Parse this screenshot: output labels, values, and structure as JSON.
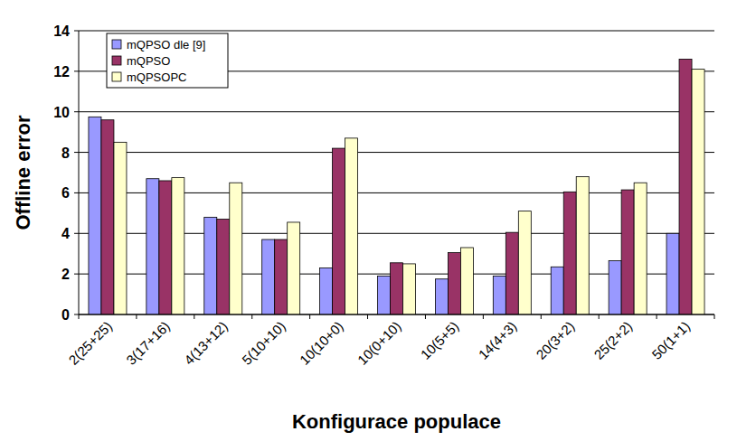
{
  "chart_data": {
    "type": "bar",
    "x_label": "Konfigurace populace",
    "y_label": "Offline error",
    "categories": [
      "2(25+25)",
      "3(17+16)",
      "4(13+12)",
      "5(10+10)",
      "10(10+0)",
      "10(0+10)",
      "10(5+5)",
      "14(4+3)",
      "20(3+2)",
      "25(2+2)",
      "50(1+1)"
    ],
    "series": [
      {
        "name": "mQPSO dle [9]",
        "color": "#9999ff",
        "values": [
          9.75,
          6.7,
          4.8,
          3.7,
          2.3,
          1.9,
          1.75,
          1.9,
          2.35,
          2.65,
          4.0
        ]
      },
      {
        "name": "mQPSO",
        "color": "#993366",
        "values": [
          9.6,
          6.6,
          4.7,
          3.7,
          8.2,
          2.55,
          3.05,
          4.05,
          6.05,
          6.15,
          12.6
        ]
      },
      {
        "name": "mQPSOPC",
        "color": "#ffffcc",
        "values": [
          8.5,
          6.75,
          6.5,
          4.55,
          8.7,
          2.5,
          3.3,
          5.1,
          6.8,
          6.5,
          12.1
        ]
      }
    ],
    "ylim": [
      0,
      14
    ],
    "yticks": [
      0,
      2,
      4,
      6,
      8,
      10,
      12,
      14
    ],
    "grid": true,
    "legend": "top-left"
  }
}
